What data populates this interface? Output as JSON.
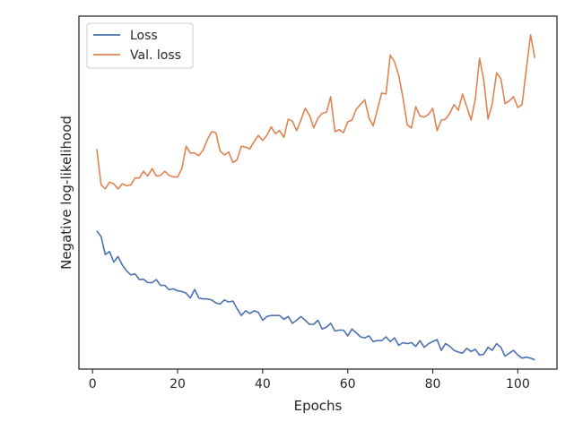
{
  "chart_data": {
    "type": "line",
    "title": "",
    "xlabel": "Epochs",
    "ylabel": "Negative log-likelihood",
    "xlim": [
      -3.2,
      109.2
    ],
    "ylim": [
      0,
      100
    ],
    "xticks": [
      0,
      20,
      40,
      60,
      80,
      100
    ],
    "yticks": [],
    "grid": false,
    "legend_position": "top-left",
    "series": [
      {
        "name": "Loss",
        "color": "#4c72b0",
        "x": [
          1,
          2,
          3,
          4,
          5,
          6,
          7,
          8,
          9,
          10,
          11,
          12,
          13,
          14,
          15,
          16,
          17,
          18,
          19,
          20,
          21,
          22,
          23,
          24,
          25,
          26,
          27,
          28,
          29,
          30,
          31,
          32,
          33,
          34,
          35,
          36,
          37,
          38,
          39,
          40,
          41,
          42,
          43,
          44,
          45,
          46,
          47,
          48,
          49,
          50,
          51,
          52,
          53,
          54,
          55,
          56,
          57,
          58,
          59,
          60,
          61,
          62,
          63,
          64,
          65,
          66,
          67,
          68,
          69,
          70,
          71,
          72,
          73,
          74,
          75,
          76,
          77,
          78,
          79,
          80,
          81,
          82,
          83,
          84,
          85,
          86,
          87,
          88,
          89,
          90,
          91,
          92,
          93,
          94,
          95,
          96,
          97,
          98,
          99,
          100,
          101,
          102,
          103,
          104
        ],
        "values": [
          38.7,
          37.0,
          31.7,
          32.6,
          29.5,
          31.1,
          28.6,
          26.9,
          25.7,
          26.0,
          24.3,
          24.4,
          23.4,
          23.4,
          24.3,
          22.6,
          22.6,
          21.3,
          21.6,
          21.0,
          20.8,
          20.3,
          18.9,
          21.4,
          18.9,
          18.6,
          18.6,
          18.3,
          17.4,
          17.1,
          18.3,
          17.7,
          18.0,
          15.7,
          13.7,
          15.1,
          14.3,
          15.1,
          14.6,
          12.3,
          13.4,
          13.7,
          13.7,
          13.7,
          12.6,
          13.4,
          11.4,
          12.3,
          13.4,
          12.3,
          11.1,
          11.1,
          12.3,
          9.7,
          10.3,
          11.4,
          9.1,
          9.4,
          9.4,
          7.7,
          9.7,
          8.6,
          7.4,
          7.1,
          7.7,
          6.0,
          6.3,
          6.3,
          7.4,
          6.0,
          7.1,
          4.9,
          5.7,
          5.4,
          5.7,
          4.6,
          6.3,
          4.3,
          5.4,
          6.0,
          6.6,
          3.4,
          5.4,
          4.6,
          3.4,
          2.9,
          2.6,
          4.0,
          3.1,
          3.7,
          2.0,
          2.3,
          4.3,
          3.4,
          5.4,
          4.3,
          1.7,
          2.6,
          3.4,
          2.0,
          1.1,
          1.4,
          1.1,
          0.6
        ]
      },
      {
        "name": "Val. loss",
        "color": "#dd8452",
        "x": [
          1,
          2,
          3,
          4,
          5,
          6,
          7,
          8,
          9,
          10,
          11,
          12,
          13,
          14,
          15,
          16,
          17,
          18,
          19,
          20,
          21,
          22,
          23,
          24,
          25,
          26,
          27,
          28,
          29,
          30,
          31,
          32,
          33,
          34,
          35,
          36,
          37,
          38,
          39,
          40,
          41,
          42,
          43,
          44,
          45,
          46,
          47,
          48,
          49,
          50,
          51,
          52,
          53,
          54,
          55,
          56,
          57,
          58,
          59,
          60,
          61,
          62,
          63,
          64,
          65,
          66,
          67,
          68,
          69,
          70,
          71,
          72,
          73,
          74,
          75,
          76,
          77,
          78,
          79,
          80,
          81,
          82,
          83,
          84,
          85,
          86,
          87,
          88,
          89,
          90,
          91,
          92,
          93,
          94,
          95,
          96,
          97,
          98,
          99,
          100,
          101,
          102,
          103,
          104
        ],
        "values": [
          62.9,
          52.3,
          51.1,
          53.1,
          52.6,
          51.1,
          52.6,
          52.0,
          52.3,
          54.3,
          54.3,
          56.3,
          54.9,
          57.1,
          54.9,
          55.1,
          56.3,
          55.1,
          54.6,
          54.6,
          57.1,
          63.7,
          61.7,
          61.7,
          60.9,
          62.6,
          65.7,
          68.0,
          67.7,
          62.3,
          61.1,
          62.0,
          58.9,
          59.7,
          63.7,
          63.4,
          62.9,
          65.1,
          66.9,
          65.4,
          66.9,
          69.4,
          67.4,
          68.3,
          66.3,
          71.7,
          71.1,
          68.3,
          71.4,
          74.9,
          72.9,
          69.1,
          72.0,
          73.4,
          73.7,
          78.3,
          68.0,
          68.6,
          67.7,
          70.9,
          71.4,
          74.6,
          76.0,
          77.4,
          72.0,
          69.7,
          74.6,
          79.4,
          79.1,
          90.6,
          88.6,
          84.6,
          78.0,
          70.0,
          69.1,
          75.4,
          72.6,
          72.3,
          73.1,
          74.9,
          68.3,
          71.4,
          71.7,
          73.4,
          76.0,
          74.3,
          79.1,
          75.4,
          71.4,
          77.7,
          89.7,
          83.1,
          71.7,
          76.3,
          85.4,
          83.7,
          76.3,
          77.1,
          78.3,
          75.1,
          76.0,
          86.6,
          96.6,
          89.7
        ]
      }
    ]
  }
}
